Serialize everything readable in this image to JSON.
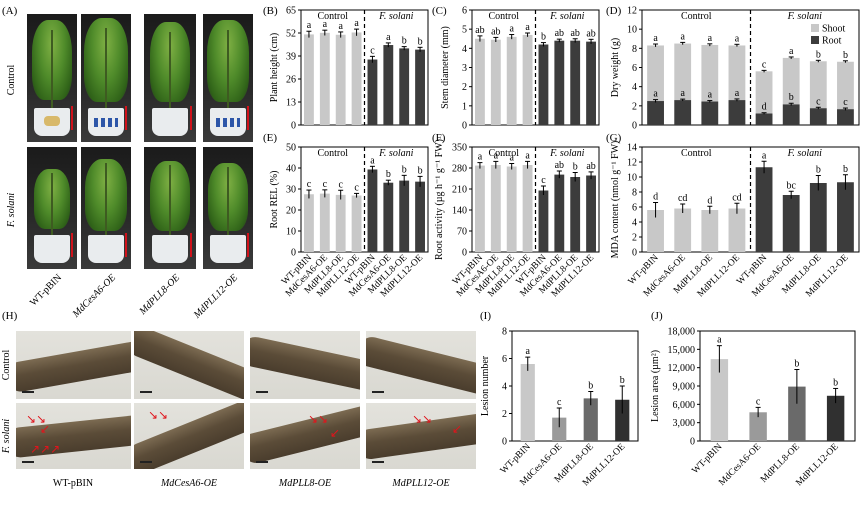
{
  "panel_letters": [
    "(A)",
    "(B)",
    "(C)",
    "(D)",
    "(E)",
    "(F)",
    "(G)",
    "(H)",
    "(I)",
    "(J)"
  ],
  "lines": [
    "WT-pBIN",
    "MdCesA6-OE",
    "MdPLL8-OE",
    "MdPLL12-OE"
  ],
  "conditions": {
    "control": "Control",
    "treatment": "F. solani"
  },
  "photo_labels": {
    "row_control": "Control",
    "row_treat": "F. solani",
    "bottom": [
      "WT-pBIN",
      "MdCesA6-OE",
      "MdPLL8-OE",
      "MdPLL12-OE"
    ]
  },
  "colors": {
    "control_bar": "#c8c8c8",
    "treat_bar": "#3c3c3c",
    "shoot": "#c8c8c8",
    "root": "#3c3c3c",
    "wt_i": "#c8c8c8",
    "cesa_i": "#9a9a9a",
    "pll8_i": "#6a6a6a",
    "pll12_i": "#303030"
  },
  "chart_data": [
    {
      "panel": "B",
      "type": "bar",
      "ylabel": "Plant height (cm)",
      "ylim": [
        0,
        65
      ],
      "yticks": [
        0,
        13,
        26,
        39,
        52,
        65
      ],
      "categories": [
        "WT-pBIN",
        "MdCesA6-OE",
        "MdPLL8-OE",
        "MdPLL12-OE",
        "WT-pBIN",
        "MdCesA6-OE",
        "MdPLL8-OE",
        "MdPLL12-OE"
      ],
      "values": [
        51.2,
        52.1,
        51.0,
        52.3,
        37.0,
        45.2,
        43.3,
        42.6
      ],
      "errors": [
        1.8,
        1.5,
        1.6,
        1.9,
        1.8,
        1.2,
        1.0,
        1.3
      ],
      "letters": [
        "a",
        "a",
        "a",
        "a",
        "c",
        "a",
        "b",
        "b"
      ]
    },
    {
      "panel": "C",
      "type": "bar",
      "ylabel": "Stem diameter (mm)",
      "ylim": [
        0,
        6
      ],
      "yticks": [
        0,
        1,
        2,
        3,
        4,
        5,
        6
      ],
      "categories": [
        "WT-pBIN",
        "MdCesA6-OE",
        "MdPLL8-OE",
        "MdPLL12-OE",
        "WT-pBIN",
        "MdCesA6-OE",
        "MdPLL8-OE",
        "MdPLL12-OE"
      ],
      "values": [
        4.5,
        4.45,
        4.6,
        4.7,
        4.2,
        4.4,
        4.4,
        4.35
      ],
      "errors": [
        0.15,
        0.12,
        0.12,
        0.1,
        0.1,
        0.08,
        0.1,
        0.12
      ],
      "letters": [
        "ab",
        "ab",
        "a",
        "a",
        "b",
        "ab",
        "ab",
        "ab"
      ]
    },
    {
      "panel": "D",
      "type": "stacked-bar",
      "ylabel": "Dry weight (g)",
      "ylim": [
        0,
        12
      ],
      "yticks": [
        0,
        2,
        4,
        6,
        8,
        10,
        12
      ],
      "categories": [
        "WT-pBIN",
        "MdCesA6-OE",
        "MdPLL8-OE",
        "MdPLL12-OE",
        "WT-pBIN",
        "MdCesA6-OE",
        "MdPLL8-OE",
        "MdPLL12-OE"
      ],
      "series": [
        {
          "name": "Root",
          "values": [
            2.5,
            2.6,
            2.45,
            2.6,
            1.2,
            2.15,
            1.75,
            1.65
          ],
          "errors": [
            0.15,
            0.1,
            0.1,
            0.12,
            0.08,
            0.12,
            0.1,
            0.12
          ]
        },
        {
          "name": "Shoot",
          "values": [
            5.8,
            5.9,
            5.9,
            5.7,
            4.4,
            4.85,
            4.9,
            4.95
          ],
          "errors": [
            0.15,
            0.12,
            0.12,
            0.12,
            0.1,
            0.1,
            0.1,
            0.1
          ]
        }
      ],
      "letters_total": [
        "a",
        "a",
        "a",
        "a",
        "c",
        "a",
        "b",
        "b"
      ],
      "letters_root": [
        "a",
        "a",
        "a",
        "a",
        "d",
        "b",
        "c",
        "c"
      ],
      "legend": [
        "Shoot",
        "Root"
      ]
    },
    {
      "panel": "E",
      "type": "bar",
      "ylabel": "Root REL (%)",
      "ylim": [
        0,
        50
      ],
      "yticks": [
        0,
        10,
        20,
        30,
        40,
        50
      ],
      "categories": [
        "WT-pBIN",
        "MdCesA6-OE",
        "MdPLL8-OE",
        "MdPLL12-OE",
        "WT-pBIN",
        "MdCesA6-OE",
        "MdPLL8-OE",
        "MdPLL12-OE"
      ],
      "values": [
        27.5,
        27.8,
        27.2,
        26.9,
        39.3,
        33.0,
        34.0,
        33.5
      ],
      "errors": [
        2.0,
        1.8,
        2.2,
        1.0,
        1.5,
        1.2,
        2.5,
        2.5
      ],
      "letters": [
        "c",
        "c",
        "c",
        "c",
        "a",
        "b",
        "b",
        "b"
      ]
    },
    {
      "panel": "F",
      "type": "bar",
      "ylabel": "Root activity (µg h⁻¹ g⁻¹ FW)",
      "ylim": [
        0,
        350
      ],
      "yticks": [
        0,
        70,
        140,
        210,
        280,
        350
      ],
      "categories": [
        "WT-pBIN",
        "MdCesA6-OE",
        "MdPLL8-OE",
        "MdPLL12-OE",
        "WT-pBIN",
        "MdCesA6-OE",
        "MdPLL8-OE",
        "MdPLL12-OE"
      ],
      "values": [
        288,
        290,
        285,
        290,
        205,
        258,
        250,
        255
      ],
      "errors": [
        10,
        12,
        10,
        12,
        15,
        12,
        15,
        12
      ],
      "letters": [
        "a",
        "a",
        "a",
        "a",
        "c",
        "ab",
        "b",
        "ab"
      ]
    },
    {
      "panel": "G",
      "type": "bar",
      "ylabel": "MDA content (nmol g⁻¹ FW)",
      "ylim": [
        0,
        14
      ],
      "yticks": [
        0,
        2,
        4,
        6,
        8,
        10,
        12,
        14
      ],
      "categories": [
        "WT-pBIN",
        "MdCesA6-OE",
        "MdPLL8-OE",
        "MdPLL12-OE",
        "WT-pBIN",
        "MdCesA6-OE",
        "MdPLL8-OE",
        "MdPLL12-OE"
      ],
      "values": [
        5.6,
        5.8,
        5.6,
        5.8,
        11.3,
        7.6,
        9.2,
        9.3
      ],
      "errors": [
        1.0,
        0.6,
        0.5,
        0.7,
        0.8,
        0.5,
        1.0,
        1.0
      ],
      "letters": [
        "d",
        "cd",
        "d",
        "cd",
        "a",
        "bc",
        "b",
        "b"
      ]
    },
    {
      "panel": "I",
      "type": "bar",
      "ylabel": "Lesion number",
      "ylim": [
        0,
        8
      ],
      "yticks": [
        0,
        2,
        4,
        6,
        8
      ],
      "categories": [
        "WT-pBIN",
        "MdCesA6-OE",
        "MdPLL8-OE",
        "MdPLL12-OE"
      ],
      "values": [
        5.6,
        1.7,
        3.1,
        3.0
      ],
      "errors": [
        0.5,
        0.7,
        0.5,
        1.0
      ],
      "letters": [
        "a",
        "c",
        "b",
        "b"
      ]
    },
    {
      "panel": "J",
      "type": "bar",
      "ylabel": "Lesion area (µm²)",
      "ylim": [
        0,
        18000
      ],
      "yticks": [
        0,
        3000,
        6000,
        9000,
        12000,
        15000,
        18000
      ],
      "yticklabels": [
        "0",
        "3,000",
        "6,000",
        "9,000",
        "12,000",
        "15,000",
        "18,000"
      ],
      "categories": [
        "WT-pBIN",
        "MdCesA6-OE",
        "MdPLL8-OE",
        "MdPLL12-OE"
      ],
      "values": [
        13400,
        4700,
        8900,
        7400
      ],
      "errors": [
        2200,
        800,
        2800,
        1200
      ],
      "letters": [
        "a",
        "c",
        "b",
        "b"
      ]
    }
  ]
}
